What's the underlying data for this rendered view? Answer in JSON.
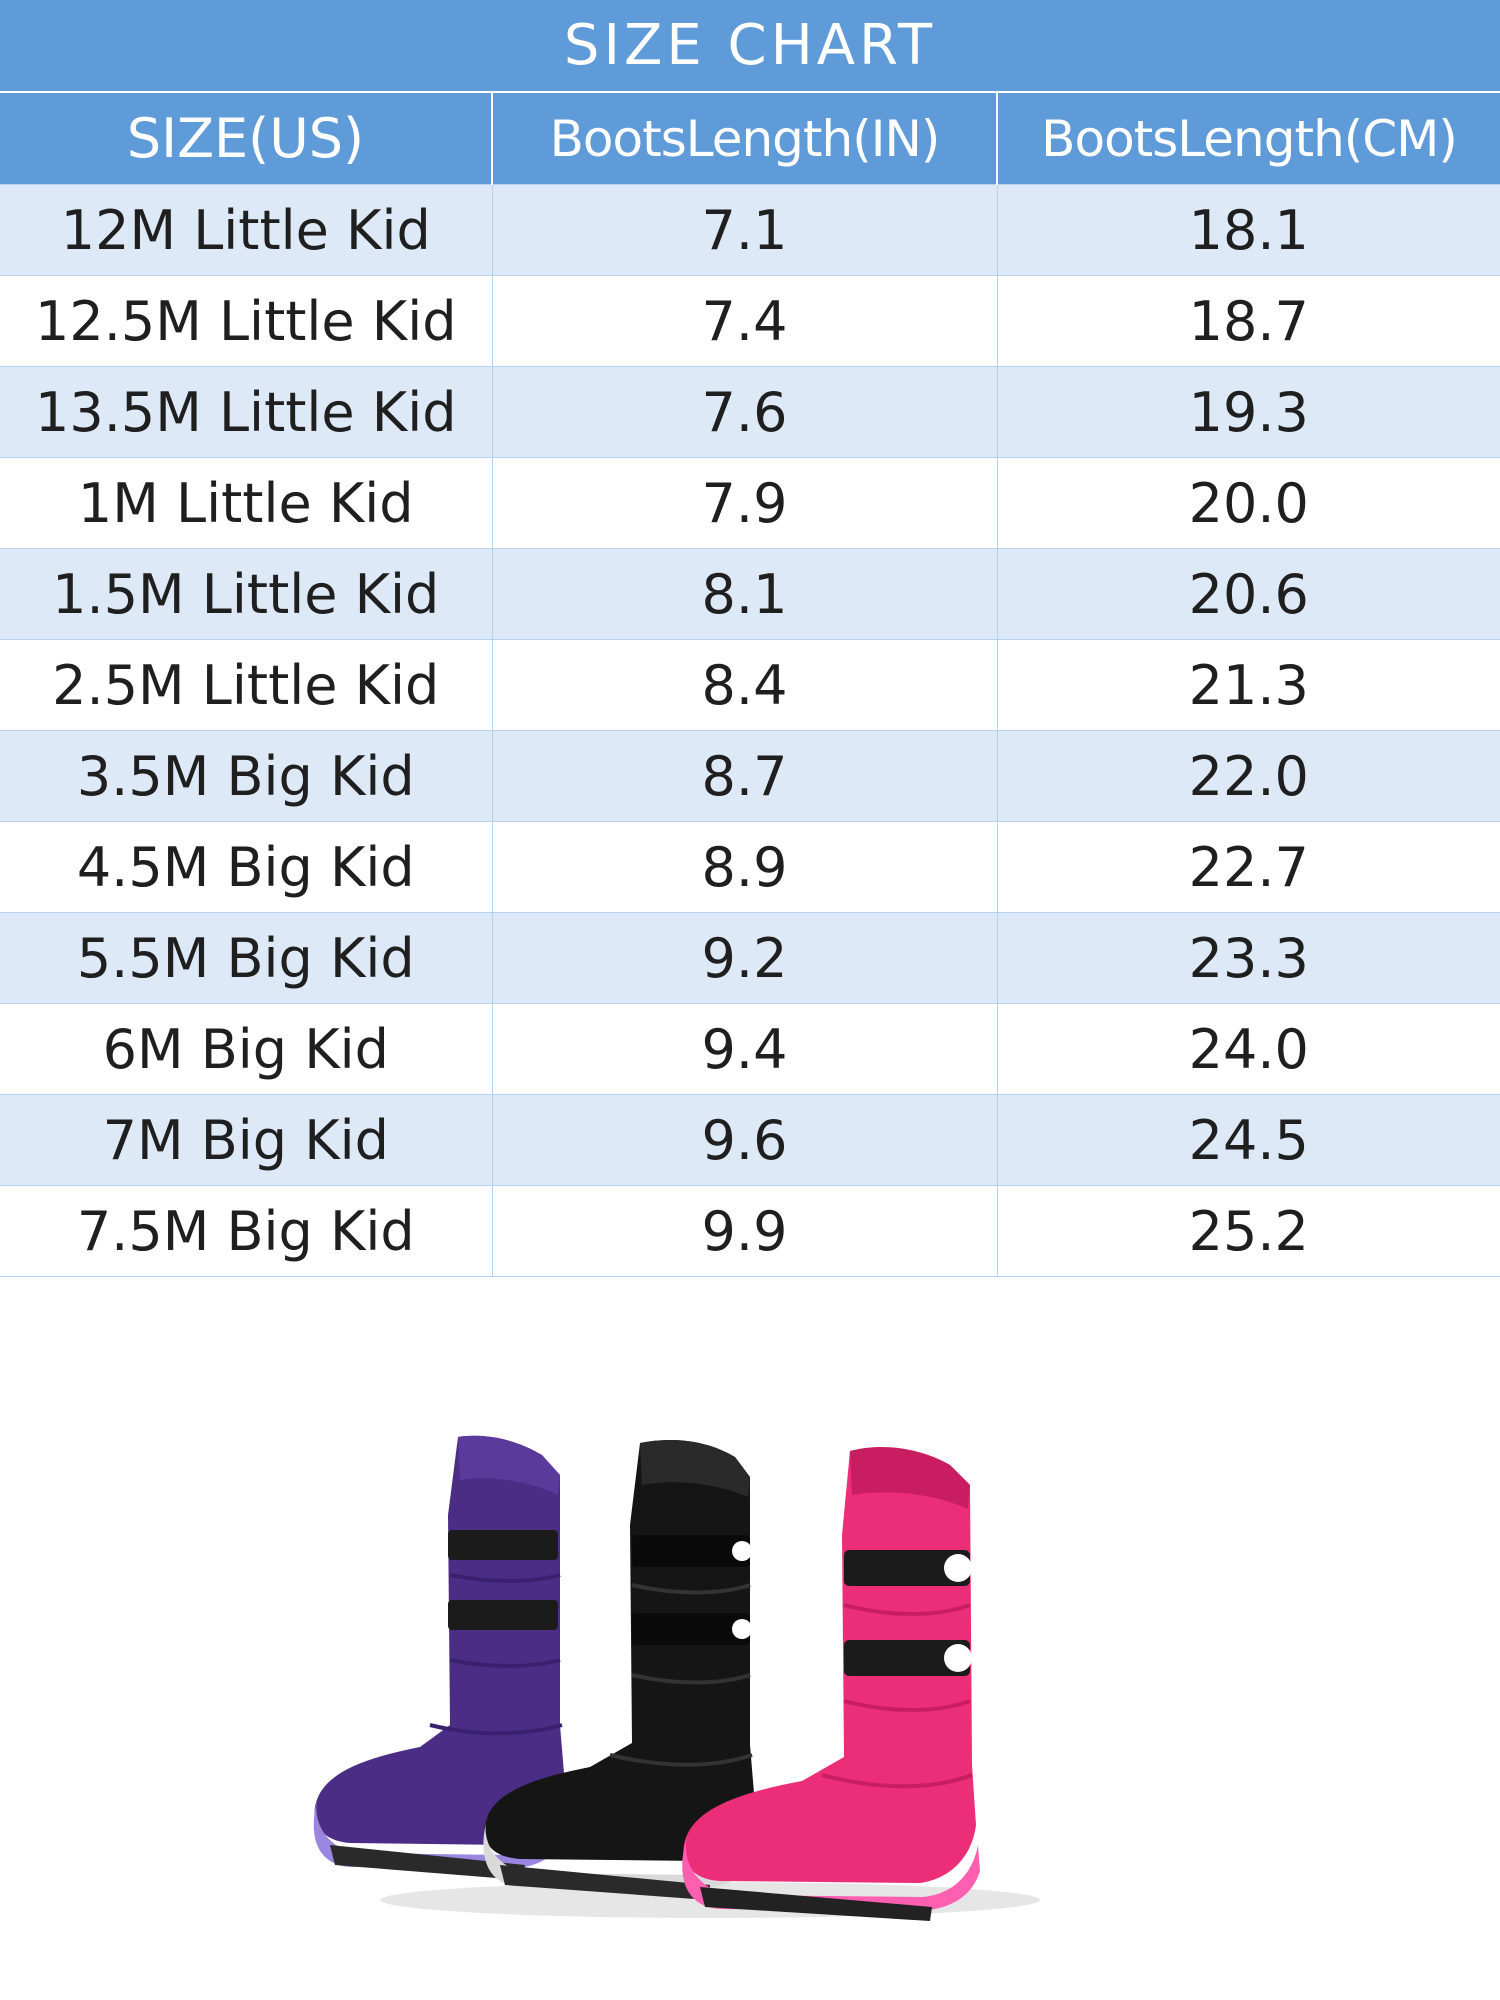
{
  "chart_data": {
    "type": "table",
    "title": "SIZE CHART",
    "columns": [
      "SIZE(US)",
      "BootsLength(IN)",
      "BootsLength(CM)"
    ],
    "rows": [
      [
        "12M Little Kid",
        "7.1",
        "18.1"
      ],
      [
        "12.5M Little Kid",
        "7.4",
        "18.7"
      ],
      [
        "13.5M Little Kid",
        "7.6",
        "19.3"
      ],
      [
        "1M Little Kid",
        "7.9",
        "20.0"
      ],
      [
        "1.5M Little Kid",
        "8.1",
        "20.6"
      ],
      [
        "2.5M Little Kid",
        "8.4",
        "21.3"
      ],
      [
        "3.5M Big Kid",
        "8.7",
        "22.0"
      ],
      [
        "4.5M Big Kid",
        "8.9",
        "22.7"
      ],
      [
        "5.5M Big Kid",
        "9.2",
        "23.3"
      ],
      [
        "6M Big Kid",
        "9.4",
        "24.0"
      ],
      [
        "7M Big Kid",
        "9.6",
        "24.5"
      ],
      [
        "7.5M Big Kid",
        "9.9",
        "25.2"
      ]
    ]
  },
  "colors": {
    "header_bg": "#5e9bd8",
    "row_alt_bg": "#dde9f6",
    "boot_purple": "#4b2d86",
    "boot_black": "#151515",
    "boot_pink": "#ec2d78"
  },
  "illustration": {
    "name": "kids-snow-boots",
    "boots": [
      "purple",
      "black",
      "pink"
    ]
  }
}
